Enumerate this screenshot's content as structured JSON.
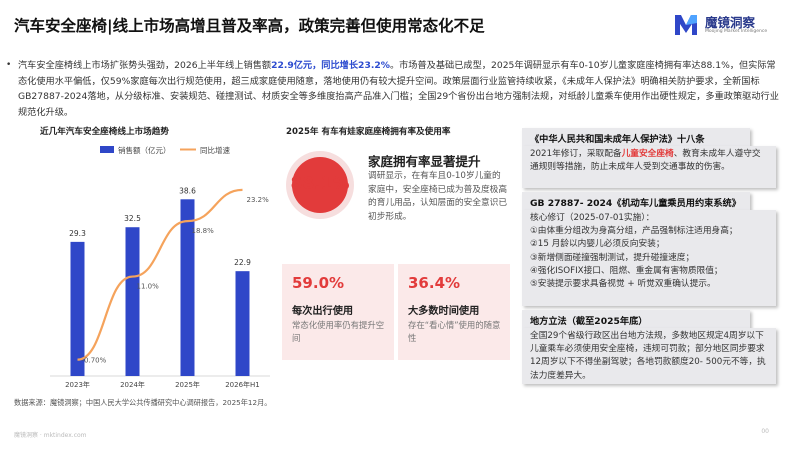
{
  "header": {
    "title": "汽车安全座椅|线上市场高增且普及率高，政策完善但使用常态化不足",
    "logo_name": "魔镜洞察",
    "logo_sub": "Moojing Market Intelligence"
  },
  "intro": {
    "bullet": "•",
    "p1": "汽车安全座椅线上市场扩张势头强劲，2026上半年线上销售额",
    "hl1": "22.9亿元，同比增长23.2%",
    "p2": "。市场普及基础已成型，2025年调研显示有车0-10岁儿童家庭座椅拥有率达88.1%，但实际常态化使用水平偏低，仅59%家庭每次出行规范使用，超三成家庭使用随意，落地使用仍有较大提升空间。政策层面行业监管持续收紧，《未成年人保护法》明确相关防护要求，全新国标GB27887-2024落地，从分级标准、安装规范、碰撞测试、材质安全等多维度抬高产品准入门槛；全国29个省份出台地方强制法规，对纸龄儿童乘车使用作出硬性规定，多重政策驱动行业规范化升级。"
  },
  "section_left_title": "近几年汽车安全座椅线上市场趋势",
  "section_mid_title": "2025年 有车有娃家庭座椅拥有率及使用率",
  "chart_data": {
    "type": "bar+line",
    "categories": [
      "2023年",
      "2024年",
      "2025年",
      "2026年H1"
    ],
    "series": [
      {
        "name": "销售额（亿元）",
        "type": "bar",
        "values": [
          29.3,
          32.5,
          38.6,
          22.9
        ],
        "labels": [
          "29.3",
          "32.5",
          "38.6",
          "22.9"
        ],
        "color": "#2f47c8"
      },
      {
        "name": "同比增速",
        "type": "line",
        "values": [
          -0.7,
          11.0,
          18.8,
          23.2
        ],
        "labels": [
          "-0.70%",
          "11.0%",
          "18.8%",
          "23.2%"
        ],
        "color": "#f5a35c"
      }
    ],
    "bar_ylim": [
      0,
      45
    ],
    "line_ylim": [
      -3,
      26
    ]
  },
  "ring": {
    "value": 0.881,
    "label": "88.1%",
    "color": "#e23b3b",
    "headline": "家庭拥有率显著提升",
    "desc": "调研显示，在有车且0-10岁儿童的家庭中，安全座椅已成为普及度极高的育儿用品，认知层面的安全意识已初步形成。"
  },
  "cards": [
    {
      "value": "59.0%",
      "title": "每次出行使用",
      "desc": "常态化使用率仍有提升空间"
    },
    {
      "value": "36.4%",
      "title": "大多数时间使用",
      "desc": "存在“看心情”使用的随意性"
    }
  ],
  "policies": [
    {
      "title": "《中华人民共和国未成年人保护法》十八条",
      "body_pre": "2021年修订，采取配备",
      "body_hl": "儿童安全座椅",
      "body_post": "、教育未成年人遵守交通规则等措施，防止未成年人受到交通事故的伤害。"
    },
    {
      "title": "GB 27887- 2024《机动车儿童乘员用约束系统》",
      "lines": [
        "核心修订（2025-07-01实施）：",
        "①由体重分组改为身高分组，产品强制标注适用身高；",
        "②15 月龄以内婴儿必须反向安装；",
        "③新增侧面碰撞强制测试，提升碰撞速度；",
        "④强化ISOFIX接口、阻燃、重金属有害物质限值；",
        "⑤安装提示要求具备视觉 + 听觉双重确认提示。"
      ]
    },
    {
      "title": "地方立法（截至2025年底）",
      "body": "全国29个省级行政区出台地方法规，多数地区规定4周岁以下儿童乘车必须使用安全座椅，违规可罚款；部分地区同步要求12周岁以下不得坐副驾驶；各地罚款额度20- 500元不等，执法力度差异大。"
    }
  ],
  "source": "数据来源：魔镜洞察；中国人民大学公共传播研究中心调研报告，2025年12月。",
  "footer": {
    "text": "魔镜洞察 · mktindex.com",
    "page": "00"
  }
}
